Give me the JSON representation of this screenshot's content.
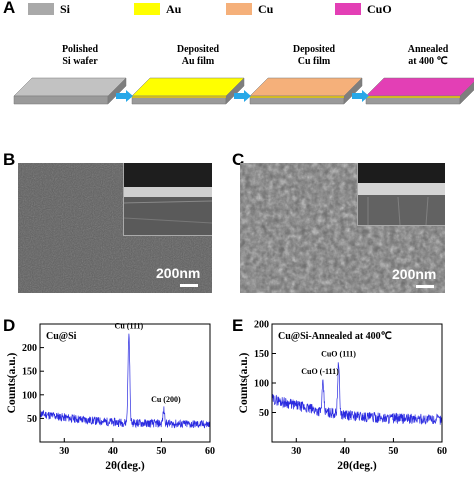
{
  "panel_letters": {
    "a": "A",
    "b": "B",
    "c": "C",
    "d": "D",
    "e": "E"
  },
  "legend": [
    {
      "label": "Si",
      "color": "#a9a9a9"
    },
    {
      "label": "Au",
      "color": "#ffff00"
    },
    {
      "label": "Cu",
      "color": "#f5b07a"
    },
    {
      "label": "CuO",
      "color": "#e33fb5"
    }
  ],
  "process_steps": [
    {
      "line1": "Polished",
      "line2": "Si wafer",
      "top_color": "#c2c2c2"
    },
    {
      "line1": "Deposited",
      "line2": "Au film",
      "top_color": "#ffff00"
    },
    {
      "line1": "Deposited",
      "line2": "Cu film",
      "top_color": "#f5b07a"
    },
    {
      "line1": "Annealed",
      "line2": "at 400 ℃",
      "top_color": "#e33fb5"
    }
  ],
  "arrow_color": "#28a8e8",
  "sem": {
    "b_scale": "200nm",
    "c_scale": "200nm"
  },
  "chart_data": [
    {
      "type": "line",
      "panel": "D",
      "annotation": "Cu@Si",
      "xlabel": "2θ(deg.)",
      "ylabel": "Counts(a.u.)",
      "xlim": [
        25,
        60
      ],
      "ylim": [
        0,
        250
      ],
      "xticks": [
        30,
        40,
        50,
        60
      ],
      "yticks": [
        50,
        100,
        150,
        200
      ],
      "line_color": "#2a2ae0",
      "baseline": [
        [
          25,
          60
        ],
        [
          30,
          52
        ],
        [
          35,
          46
        ],
        [
          40,
          42
        ],
        [
          45,
          40
        ],
        [
          50,
          39
        ],
        [
          55,
          38
        ],
        [
          60,
          37
        ]
      ],
      "peaks": [
        {
          "x": 43.3,
          "y": 228,
          "label": "Cu (111)"
        },
        {
          "x": 50.5,
          "y": 68,
          "label": "Cu (200)"
        }
      ]
    },
    {
      "type": "line",
      "panel": "E",
      "annotation": "Cu@Si-Annealed at 400℃",
      "xlabel": "2θ(deg.)",
      "ylabel": "Counts(a.u.)",
      "xlim": [
        25,
        60
      ],
      "ylim": [
        0,
        200
      ],
      "xticks": [
        30,
        40,
        50,
        60
      ],
      "yticks": [
        50,
        100,
        150,
        200
      ],
      "line_color": "#2a2ae0",
      "baseline": [
        [
          25,
          73
        ],
        [
          30,
          62
        ],
        [
          35,
          52
        ],
        [
          40,
          46
        ],
        [
          45,
          42
        ],
        [
          50,
          40
        ],
        [
          55,
          39
        ],
        [
          60,
          38
        ]
      ],
      "peaks": [
        {
          "x": 35.5,
          "y": 98,
          "label": "CuO (-111)"
        },
        {
          "x": 38.7,
          "y": 135,
          "label": "CuO (111)"
        }
      ]
    }
  ]
}
